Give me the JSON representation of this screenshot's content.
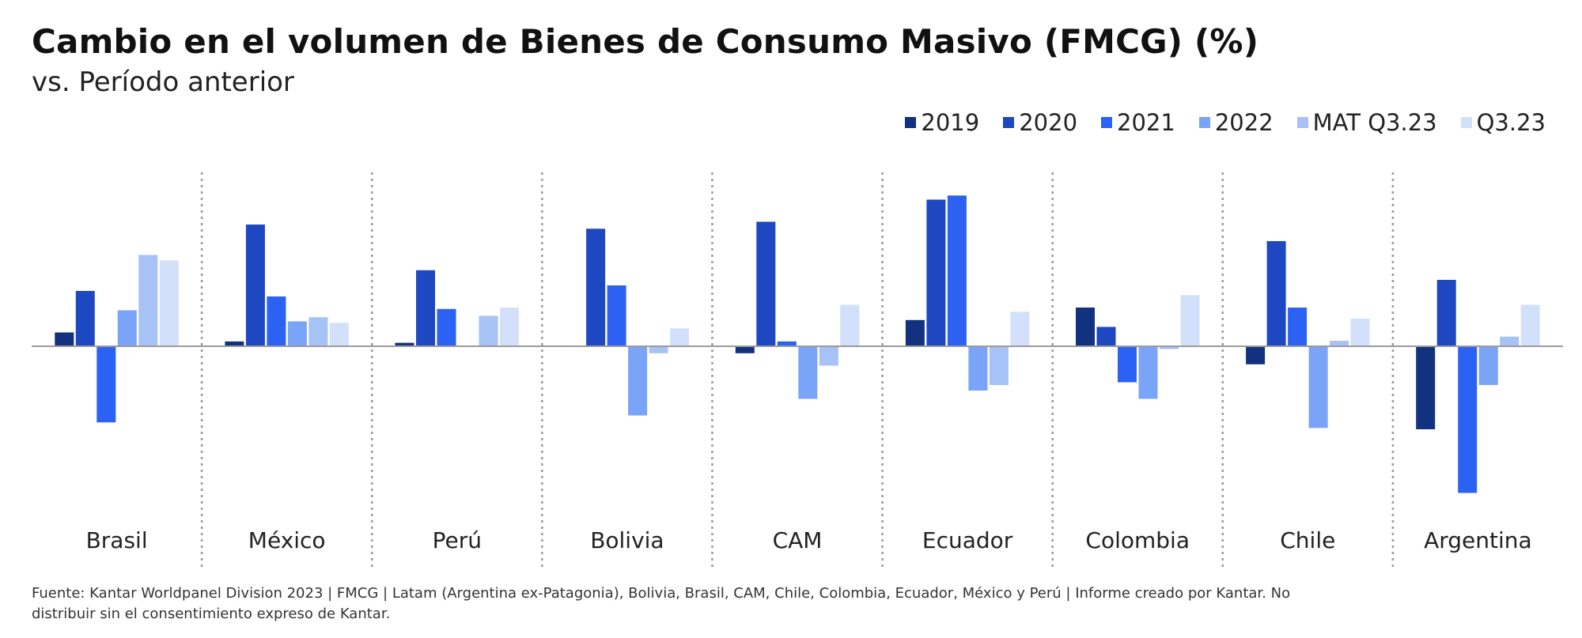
{
  "title": "Cambio en el volumen de Bienes de Consumo Masivo (FMCG) (%)",
  "subtitle": "vs. Período anterior",
  "source": "Fuente: Kantar Worldpanel Division 2023 | FMCG | Latam (Argentina ex-Patagonia), Bolivia, Brasil, CAM, Chile, Colombia, Ecuador, México y Perú | Informe creado por Kantar. No distribuir sin el consentimiento expreso de Kantar.",
  "chart_data": {
    "type": "bar",
    "categories": [
      "Brasil",
      "México",
      "Perú",
      "Bolivia",
      "CAM",
      "Ecuador",
      "Colombia",
      "Chile",
      "Argentina"
    ],
    "series": [
      {
        "name": "2019",
        "color": "#12317e",
        "values": [
          1.0,
          0.35,
          0.25,
          0.05,
          -0.5,
          1.9,
          2.8,
          -1.3,
          -6.0
        ]
      },
      {
        "name": "2020",
        "color": "#1e47c2",
        "values": [
          4.0,
          8.8,
          5.5,
          8.5,
          9.0,
          10.6,
          1.4,
          7.6,
          4.8
        ]
      },
      {
        "name": "2021",
        "color": "#2b62f3",
        "values": [
          -5.5,
          3.6,
          2.7,
          4.4,
          0.35,
          10.9,
          -2.6,
          2.8,
          -10.6
        ]
      },
      {
        "name": "2022",
        "color": "#79a4f8",
        "values": [
          2.6,
          1.8,
          0.05,
          -5.0,
          -3.8,
          -3.2,
          -3.8,
          -5.9,
          -2.8
        ]
      },
      {
        "name": "MAT Q3.23",
        "color": "#a6c2f7",
        "values": [
          6.6,
          2.1,
          2.2,
          -0.5,
          -1.4,
          -2.8,
          -0.2,
          0.4,
          0.7
        ]
      },
      {
        "name": "Q3.23",
        "color": "#d3e0fb",
        "values": [
          6.2,
          1.7,
          2.8,
          1.3,
          3.0,
          2.5,
          3.7,
          2.0,
          3.0
        ]
      }
    ],
    "legend_position": "top-right",
    "grid": false,
    "ylim": [
      -12,
      12
    ]
  }
}
